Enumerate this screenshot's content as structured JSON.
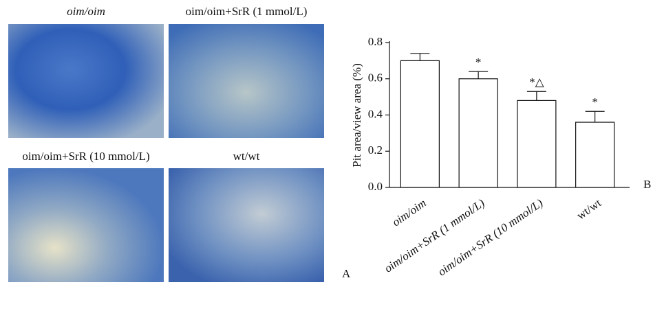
{
  "panel_a": {
    "captions": [
      "oim/oim",
      "oim/oim+SrR (1 mmol/L)",
      "oim/oim+SrR (10 mmol/L)",
      "wt/wt"
    ],
    "label": "A"
  },
  "chart_data": {
    "type": "bar",
    "panel_label": "B",
    "y_label": "Pit area/view area (%)",
    "categories": [
      "oim/oim",
      "oim/oim+SrR (1 mmol/L)",
      "oim/oim+SrR (10 mmol/L)",
      "wt/wt"
    ],
    "values": [
      0.7,
      0.6,
      0.48,
      0.36
    ],
    "errors": [
      0.04,
      0.04,
      0.05,
      0.06
    ],
    "annotations": [
      null,
      "*",
      "*△",
      "*"
    ],
    "color": "#ffffff",
    "ylim": [
      0,
      0.8
    ],
    "yticks": [
      {
        "value": 0,
        "label": "0.0"
      },
      0.2,
      0.4,
      0.6,
      0.8
    ]
  }
}
